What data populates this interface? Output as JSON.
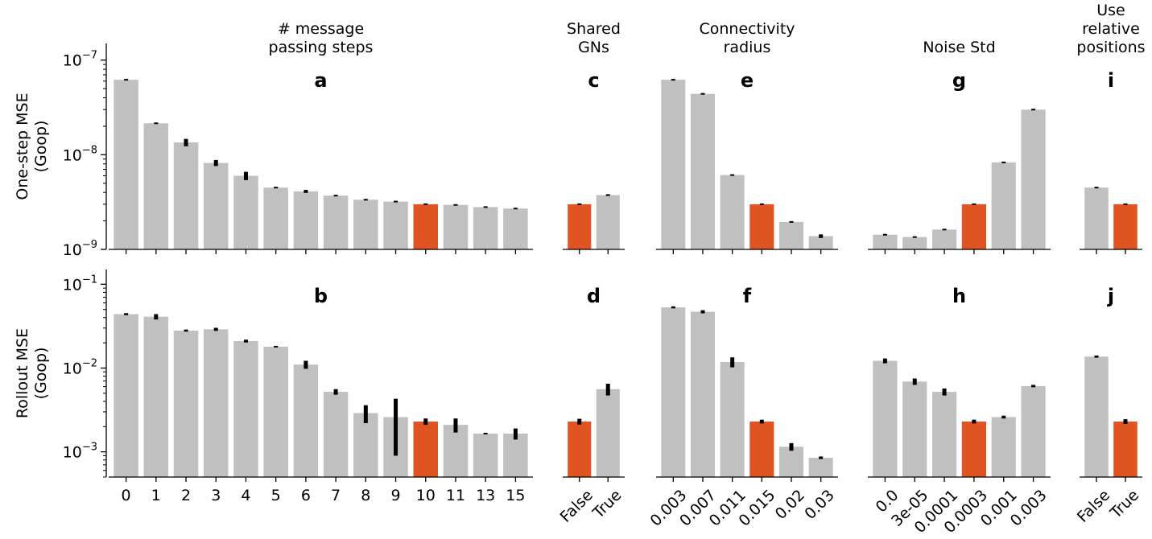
{
  "colors": {
    "default_bar": "#c0c0c0",
    "highlight_bar": "#e05424",
    "error_bar": "#000000"
  },
  "rows": [
    {
      "ylabel": [
        "One-step MSE",
        "(Goop)"
      ],
      "ytick_exponents": [
        "-9",
        "-8",
        "-7"
      ]
    },
    {
      "ylabel": [
        "Rollout MSE",
        "(Goop)"
      ],
      "ytick_exponents": [
        "-3",
        "-2",
        "-1"
      ]
    }
  ],
  "chart_data": [
    {
      "type": "bar",
      "letter": "a",
      "title": [
        "# message",
        "passing steps"
      ],
      "ylim": [
        1e-09,
        1.5e-07
      ],
      "yscale": "log",
      "categories": [
        "0",
        "1",
        "2",
        "3",
        "4",
        "5",
        "6",
        "7",
        "8",
        "9",
        "10",
        "11",
        "13",
        "15"
      ],
      "values": [
        6.2e-08,
        2.15e-08,
        1.35e-08,
        8.2e-09,
        6e-09,
        4.5e-09,
        4.1e-09,
        3.7e-09,
        3.35e-09,
        3.2e-09,
        3e-09,
        2.95e-09,
        2.8e-09,
        2.7e-09
      ],
      "err": [
        3e-10,
        3e-10,
        1.2e-09,
        6e-10,
        6e-10,
        7e-11,
        1.5e-10,
        5e-11,
        5e-11,
        3e-11,
        6e-11,
        3e-11,
        5e-11,
        5e-11
      ],
      "highlight": 10
    },
    {
      "type": "bar",
      "letter": "b",
      "title": [],
      "ylim": [
        0.0005,
        0.15
      ],
      "yscale": "log",
      "categories": [
        "0",
        "1",
        "2",
        "3",
        "4",
        "5",
        "6",
        "7",
        "8",
        "9",
        "10",
        "11",
        "13",
        "15"
      ],
      "values": [
        0.044,
        0.041,
        0.028,
        0.029,
        0.021,
        0.018,
        0.011,
        0.0052,
        0.0029,
        0.0026,
        0.0023,
        0.0021,
        0.00165,
        0.00165
      ],
      "err": [
        0.0012,
        0.003,
        0.0008,
        0.0012,
        0.0008,
        0.0003,
        0.0012,
        0.0004,
        0.0007,
        0.0017,
        0.0002,
        0.0004,
        2e-05,
        0.00025
      ],
      "highlight": 10
    },
    {
      "type": "bar",
      "letter": "c",
      "title": [
        "Shared",
        "GNs"
      ],
      "ylim": [
        1e-09,
        1.5e-07
      ],
      "yscale": "log",
      "categories": [
        "False",
        "True"
      ],
      "values": [
        3e-09,
        3.75e-09
      ],
      "err": [
        5e-11,
        8e-11
      ],
      "highlight": 0
    },
    {
      "type": "bar",
      "letter": "d",
      "title": [],
      "ylim": [
        0.0005,
        0.15
      ],
      "yscale": "log",
      "categories": [
        "False",
        "True"
      ],
      "values": [
        0.0023,
        0.0056
      ],
      "err": [
        0.00018,
        0.0009
      ],
      "highlight": 0
    },
    {
      "type": "bar",
      "letter": "e",
      "title": [
        "Connectivity",
        "radius"
      ],
      "ylim": [
        1e-09,
        1.5e-07
      ],
      "yscale": "log",
      "categories": [
        "0.003",
        "0.007",
        "0.011",
        "0.015",
        "0.02",
        "0.03"
      ],
      "values": [
        6.2e-08,
        4.4e-08,
        6.1e-09,
        3e-09,
        1.95e-09,
        1.38e-09
      ],
      "err": [
        3e-10,
        5e-10,
        6e-11,
        4e-11,
        3e-11,
        6e-11
      ],
      "highlight": 3
    },
    {
      "type": "bar",
      "letter": "f",
      "title": [],
      "ylim": [
        0.0005,
        0.15
      ],
      "yscale": "log",
      "categories": [
        "0.003",
        "0.007",
        "0.011",
        "0.015",
        "0.02",
        "0.03"
      ],
      "values": [
        0.053,
        0.047,
        0.0118,
        0.0023,
        0.00115,
        0.00085
      ],
      "err": [
        0.0015,
        0.002,
        0.0016,
        0.00012,
        0.00012,
        3e-05
      ],
      "highlight": 3
    },
    {
      "type": "bar",
      "letter": "g",
      "title": [
        "Noise Std"
      ],
      "ylim": [
        1e-09,
        1.5e-07
      ],
      "yscale": "log",
      "categories": [
        "0.0",
        "3e-05",
        "0.0001",
        "0.0003",
        "0.001",
        "0.003"
      ],
      "values": [
        1.43e-09,
        1.35e-09,
        1.62e-09,
        3e-09,
        8.3e-09,
        3e-08
      ],
      "err": [
        2e-11,
        2e-11,
        2e-11,
        4e-11,
        7e-11,
        2e-10
      ],
      "highlight": 3
    },
    {
      "type": "bar",
      "letter": "h",
      "title": [],
      "ylim": [
        0.0005,
        0.15
      ],
      "yscale": "log",
      "categories": [
        "0.0",
        "3e-05",
        "0.0001",
        "0.0003",
        "0.001",
        "0.003"
      ],
      "values": [
        0.0122,
        0.0069,
        0.0052,
        0.0023,
        0.0026,
        0.0061
      ],
      "err": [
        0.0008,
        0.0006,
        0.0005,
        0.00012,
        0.0001,
        0.0002
      ],
      "highlight": 3
    },
    {
      "type": "bar",
      "letter": "i",
      "title": [
        "Use",
        "relative",
        "positions"
      ],
      "ylim": [
        1e-09,
        1.5e-07
      ],
      "yscale": "log",
      "categories": [
        "False",
        "True"
      ],
      "values": [
        4.5e-09,
        3e-09
      ],
      "err": [
        5e-11,
        4e-11
      ],
      "highlight": 1
    },
    {
      "type": "bar",
      "letter": "j",
      "title": [],
      "ylim": [
        0.0005,
        0.15
      ],
      "yscale": "log",
      "categories": [
        "False",
        "True"
      ],
      "values": [
        0.0137,
        0.0023
      ],
      "err": [
        0.0004,
        0.00015
      ],
      "highlight": 1
    }
  ]
}
